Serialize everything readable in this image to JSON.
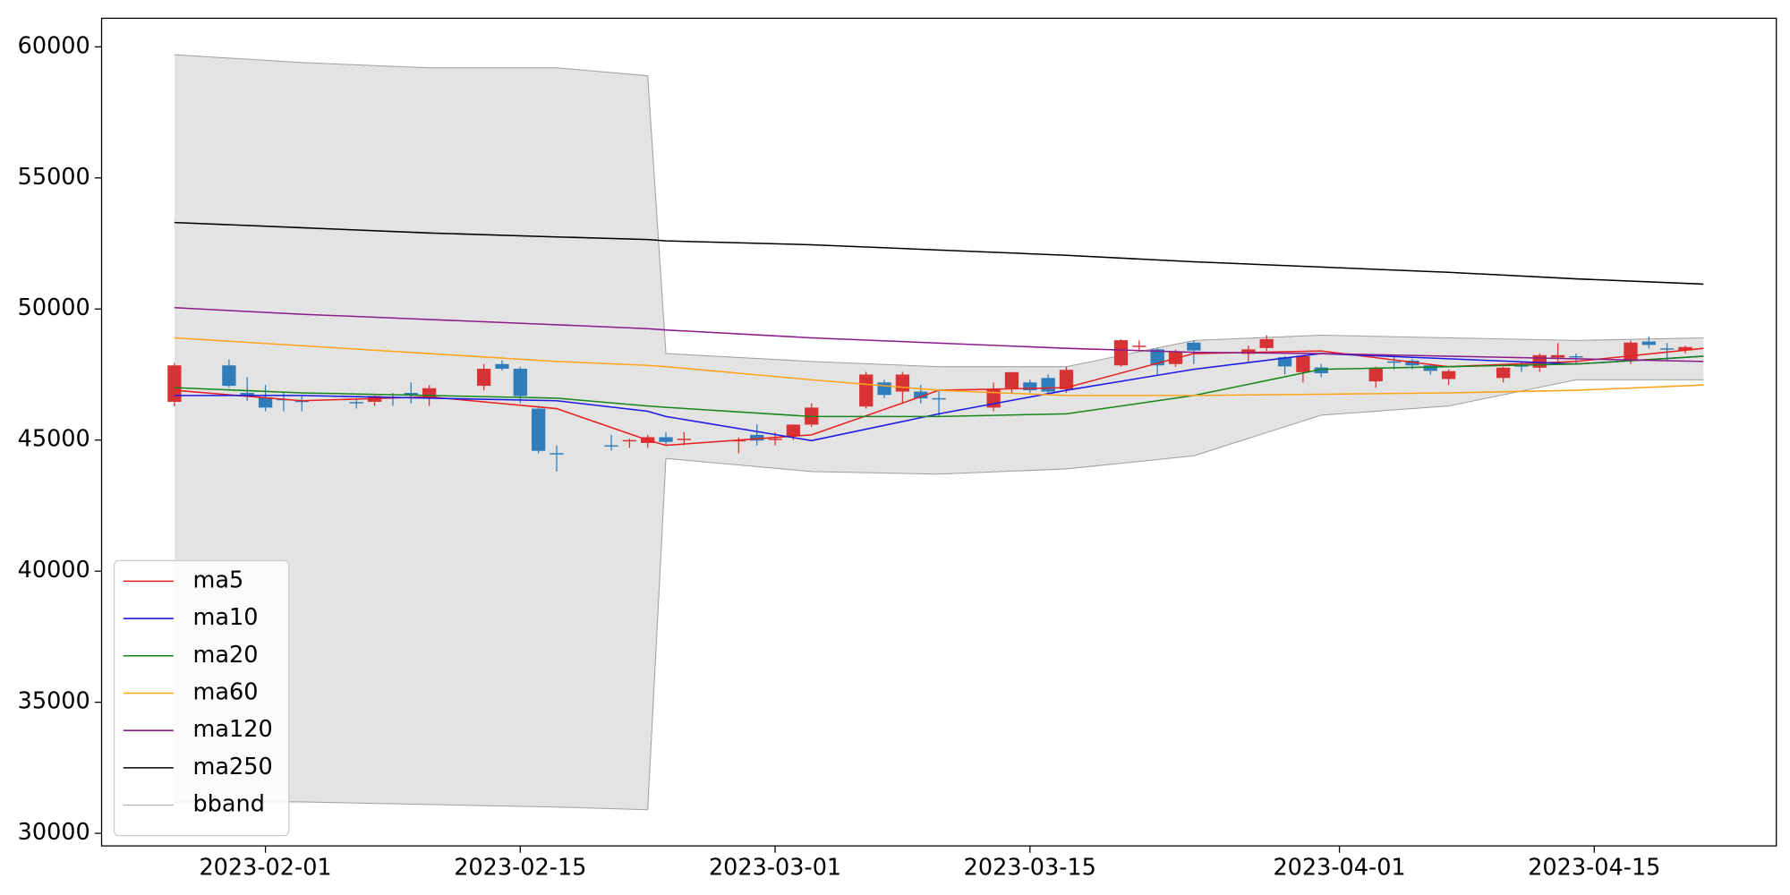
{
  "chart_data": {
    "type": "candlestick",
    "xlim": [
      "2023-01-23",
      "2023-04-25"
    ],
    "ylim": [
      29520,
      61090
    ],
    "xticks": [
      "2023-02-01",
      "2023-02-15",
      "2023-03-01",
      "2023-03-15",
      "2023-04-01",
      "2023-04-15"
    ],
    "yticks": [
      30000,
      35000,
      40000,
      45000,
      50000,
      55000,
      60000
    ],
    "legend": "lower left",
    "candles": {
      "up_color": "#d73334",
      "down_color": "#2f7dbb",
      "x": [
        "2023-01-27",
        "2023-01-30",
        "2023-01-31",
        "2023-02-01",
        "2023-02-02",
        "2023-02-03",
        "2023-02-06",
        "2023-02-07",
        "2023-02-08",
        "2023-02-09",
        "2023-02-10",
        "2023-02-13",
        "2023-02-14",
        "2023-02-15",
        "2023-02-16",
        "2023-02-17",
        "2023-02-20",
        "2023-02-21",
        "2023-02-22",
        "2023-02-23",
        "2023-02-24",
        "2023-02-27",
        "2023-02-28",
        "2023-03-01",
        "2023-03-02",
        "2023-03-03",
        "2023-03-06",
        "2023-03-07",
        "2023-03-08",
        "2023-03-09",
        "2023-03-10",
        "2023-03-13",
        "2023-03-14",
        "2023-03-15",
        "2023-03-16",
        "2023-03-17",
        "2023-03-20",
        "2023-03-21",
        "2023-03-22",
        "2023-03-23",
        "2023-03-24",
        "2023-03-27",
        "2023-03-28",
        "2023-03-29",
        "2023-03-30",
        "2023-03-31",
        "2023-04-03",
        "2023-04-04",
        "2023-04-05",
        "2023-04-06",
        "2023-04-07",
        "2023-04-10",
        "2023-04-11",
        "2023-04-12",
        "2023-04-13",
        "2023-04-14",
        "2023-04-17",
        "2023-04-18",
        "2023-04-19",
        "2023-04-20"
      ],
      "open": [
        46460,
        47850,
        46800,
        46630,
        46560,
        46500,
        46450,
        46460,
        46650,
        46800,
        46590,
        47070,
        47900,
        47720,
        46200,
        44500,
        44800,
        44950,
        44890,
        45110,
        45000,
        44950,
        45200,
        45000,
        45150,
        45590,
        46280,
        47200,
        46850,
        46850,
        46600,
        46240,
        46980,
        47200,
        47370,
        46940,
        47850,
        48550,
        48460,
        47900,
        48720,
        48290,
        48510,
        48160,
        47590,
        47770,
        47240,
        48000,
        48030,
        47850,
        47330,
        47370,
        47850,
        47760,
        48150,
        48200,
        48070,
        48760,
        48500,
        48420
      ],
      "high": [
        47940,
        48070,
        47400,
        47100,
        46800,
        46700,
        46600,
        46700,
        46800,
        47200,
        47100,
        47900,
        48050,
        47800,
        46300,
        44800,
        45200,
        45050,
        45200,
        45300,
        45300,
        45100,
        45600,
        45300,
        45600,
        46400,
        47600,
        47300,
        47600,
        47100,
        46900,
        47200,
        47600,
        47300,
        47500,
        47800,
        48850,
        48800,
        48500,
        48450,
        48800,
        48600,
        49000,
        48200,
        48250,
        47900,
        47800,
        48200,
        48100,
        47900,
        47700,
        47800,
        48000,
        48300,
        48700,
        48300,
        48800,
        48950,
        48700,
        48600
      ],
      "low": [
        46290,
        47000,
        46500,
        46100,
        46100,
        46100,
        46200,
        46300,
        46300,
        46400,
        46300,
        46900,
        47650,
        46400,
        44500,
        43800,
        44600,
        44700,
        44700,
        44800,
        44800,
        44500,
        44800,
        44800,
        45000,
        45500,
        46200,
        46600,
        46400,
        46400,
        45900,
        46100,
        46800,
        46800,
        46800,
        46800,
        47800,
        48400,
        47500,
        47800,
        47900,
        48000,
        48400,
        47500,
        47200,
        47400,
        47000,
        47700,
        47700,
        47500,
        47100,
        47200,
        47600,
        47600,
        48000,
        47900,
        47900,
        48500,
        48000,
        48300
      ],
      "close": [
        47850,
        47070,
        46720,
        46240,
        46520,
        46450,
        46400,
        46680,
        46600,
        46700,
        46980,
        47720,
        47720,
        46680,
        44590,
        44450,
        44750,
        45000,
        45110,
        44930,
        45050,
        45000,
        44980,
        45050,
        45590,
        46240,
        47500,
        46720,
        47500,
        46590,
        46550,
        46940,
        47590,
        46900,
        46850,
        47680,
        48810,
        48600,
        47850,
        48370,
        48420,
        48460,
        48850,
        47810,
        48200,
        47550,
        47720,
        47950,
        47850,
        47640,
        47630,
        47760,
        47800,
        48240,
        48240,
        48150,
        48720,
        48630,
        48450,
        48550
      ]
    },
    "x": [
      "2023-01-27",
      "2023-02-03",
      "2023-02-10",
      "2023-02-17",
      "2023-02-22",
      "2023-02-23",
      "2023-03-03",
      "2023-03-10",
      "2023-03-17",
      "2023-03-24",
      "2023-03-31",
      "2023-04-07",
      "2023-04-14",
      "2023-04-21"
    ],
    "series": [
      {
        "name": "ma5",
        "color": "#e82020",
        "values": [
          46900,
          46500,
          46650,
          46200,
          45000,
          44800,
          45200,
          46900,
          47000,
          48300,
          48400,
          47800,
          48000,
          48500
        ]
      },
      {
        "name": "ma10",
        "color": "#1a1ae6",
        "values": [
          46700,
          46700,
          46600,
          46500,
          46100,
          45900,
          44980,
          46000,
          46900,
          47700,
          48300,
          48100,
          47900,
          48200
        ]
      },
      {
        "name": "ma20",
        "color": "#16861a",
        "values": [
          47000,
          46800,
          46700,
          46600,
          46300,
          46250,
          45900,
          45900,
          46000,
          46700,
          47700,
          47800,
          47900,
          48200
        ]
      },
      {
        "name": "ma60",
        "color": "#ffa41a",
        "values": [
          48900,
          48600,
          48300,
          48000,
          47850,
          47800,
          47300,
          46900,
          46700,
          46700,
          46750,
          46800,
          46900,
          47100
        ]
      },
      {
        "name": "ma120",
        "color": "#8b1a8b",
        "values": [
          50050,
          49800,
          49600,
          49400,
          49250,
          49200,
          48900,
          48700,
          48500,
          48350,
          48300,
          48200,
          48100,
          48000
        ]
      },
      {
        "name": "ma250",
        "color": "#000000",
        "values": [
          53300,
          53100,
          52900,
          52750,
          52650,
          52600,
          52450,
          52250,
          52050,
          51800,
          51600,
          51400,
          51150,
          50950
        ]
      },
      {
        "name": "bband",
        "color": "#a0a0a0",
        "fill": "#e3e3e3",
        "upper": [
          59700,
          59400,
          59200,
          59200,
          58900,
          48300,
          48000,
          47800,
          47800,
          48800,
          49000,
          48900,
          48800,
          48900
        ],
        "lower": [
          31200,
          31200,
          31100,
          31000,
          30900,
          44300,
          43800,
          43700,
          43900,
          44400,
          45950,
          46300,
          47300,
          47300
        ]
      }
    ]
  }
}
